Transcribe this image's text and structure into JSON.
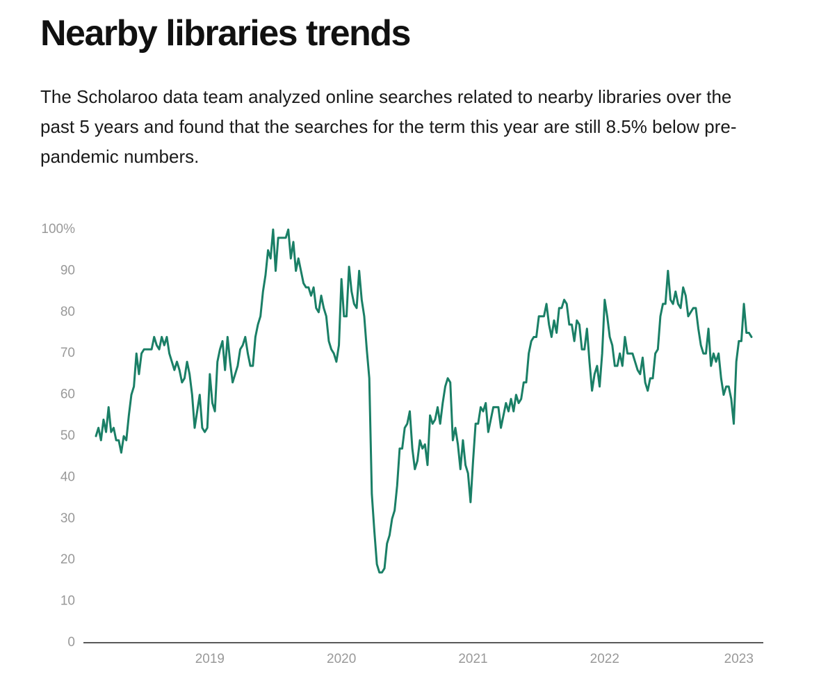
{
  "chart_data": {
    "type": "line",
    "title": "Nearby libraries trends",
    "subtitle": "The Scholaroo data team analyzed online searches related to nearby libraries over the past 5 years and found that the searches for the term this year are still 8.5% below pre-pandemic numbers.",
    "color": "#1a7f66",
    "ylim": [
      0,
      100
    ],
    "yticks": [
      0,
      10,
      20,
      30,
      40,
      50,
      60,
      70,
      80,
      90,
      {
        "value": 100,
        "label": "100%"
      }
    ],
    "grid": false,
    "categories": [
      null,
      null,
      null,
      null,
      null,
      null,
      null,
      null,
      null,
      null,
      null,
      null,
      null,
      null,
      null,
      null,
      null,
      null,
      null,
      null,
      null,
      null,
      null,
      null,
      null,
      null,
      null,
      null,
      null,
      null,
      null,
      null,
      null,
      null,
      null,
      null,
      null,
      null,
      null,
      null,
      null,
      null,
      null,
      null,
      null,
      "2019",
      null,
      null,
      null,
      null,
      null,
      null,
      null,
      null,
      null,
      null,
      null,
      null,
      null,
      null,
      null,
      null,
      null,
      null,
      null,
      null,
      null,
      null,
      null,
      null,
      null,
      null,
      null,
      null,
      null,
      null,
      null,
      null,
      null,
      null,
      null,
      null,
      null,
      null,
      null,
      null,
      null,
      null,
      null,
      null,
      null,
      null,
      null,
      null,
      null,
      null,
      null,
      "2020",
      null,
      null,
      null,
      null,
      null,
      null,
      null,
      null,
      null,
      null,
      null,
      null,
      null,
      null,
      null,
      null,
      null,
      null,
      null,
      null,
      null,
      null,
      null,
      null,
      null,
      null,
      null,
      null,
      null,
      null,
      null,
      null,
      null,
      null,
      null,
      null,
      null,
      null,
      null,
      null,
      null,
      null,
      null,
      null,
      null,
      null,
      null,
      null,
      null,
      null,
      null,
      "2021",
      null,
      null,
      null,
      null,
      null,
      null,
      null,
      null,
      null,
      null,
      null,
      null,
      null,
      null,
      null,
      null,
      null,
      null,
      null,
      null,
      null,
      null,
      null,
      null,
      null,
      null,
      null,
      null,
      null,
      null,
      null,
      null,
      null,
      null,
      null,
      null,
      null,
      null,
      null,
      null,
      null,
      null,
      null,
      null,
      null,
      null,
      null,
      null,
      null,
      null,
      null,
      "2022",
      null,
      null,
      null,
      null,
      null,
      null,
      null,
      null,
      null,
      null,
      null,
      null,
      null,
      null,
      null,
      null,
      null,
      null,
      null,
      null,
      null,
      null,
      null,
      null,
      null,
      null,
      null,
      null,
      null,
      null,
      null,
      null,
      null,
      null,
      null,
      null,
      null,
      null,
      null,
      null,
      null,
      null,
      null,
      null,
      null,
      null,
      null,
      null,
      null,
      null,
      null,
      null,
      "2023",
      null,
      null,
      null,
      null,
      null
    ],
    "values": [
      50,
      52,
      49,
      54,
      51,
      57,
      51,
      52,
      49,
      49,
      46,
      50,
      49,
      55,
      60,
      62,
      70,
      65,
      70,
      71,
      71,
      71,
      71,
      74,
      72,
      71,
      74,
      72,
      74,
      70,
      68,
      66,
      68,
      66,
      63,
      64,
      68,
      65,
      60,
      52,
      56,
      60,
      52,
      51,
      52,
      65,
      58,
      56,
      68,
      71,
      73,
      66,
      74,
      68,
      63,
      65,
      67,
      71,
      72,
      74,
      70,
      67,
      67,
      74,
      77,
      79,
      85,
      89,
      95,
      93,
      100,
      90,
      98,
      98,
      98,
      98,
      100,
      93,
      97,
      90,
      93,
      90,
      87,
      86,
      86,
      84,
      86,
      81,
      80,
      84,
      81,
      79,
      73,
      71,
      70,
      68,
      72,
      88,
      79,
      79,
      91,
      85,
      82,
      81,
      90,
      83,
      79,
      71,
      64,
      36,
      27,
      19,
      17,
      17,
      18,
      24,
      26,
      30,
      32,
      38,
      47,
      47,
      52,
      53,
      56,
      47,
      42,
      44,
      49,
      47,
      48,
      43,
      55,
      53,
      54,
      57,
      53,
      58,
      62,
      64,
      63,
      49,
      52,
      48,
      42,
      49,
      43,
      41,
      34,
      44,
      53,
      53,
      57,
      56,
      58,
      51,
      54,
      57,
      57,
      57,
      52,
      55,
      58,
      56,
      59,
      56,
      60,
      58,
      59,
      63,
      63,
      70,
      73,
      74,
      74,
      79,
      79,
      79,
      82,
      77,
      74,
      78,
      75,
      81,
      81,
      83,
      82,
      77,
      77,
      73,
      78,
      77,
      71,
      71,
      76,
      68,
      61,
      65,
      67,
      62,
      70,
      83,
      79,
      74,
      72,
      67,
      67,
      70,
      67,
      74,
      70,
      70,
      70,
      68,
      66,
      65,
      69,
      63,
      61,
      64,
      64,
      70,
      71,
      79,
      82,
      82,
      90,
      83,
      82,
      85,
      82,
      81,
      86,
      84,
      79,
      80,
      81,
      81,
      76,
      72,
      70,
      70,
      76,
      67,
      70,
      68,
      70,
      64,
      60,
      62,
      62,
      59,
      53,
      68,
      73,
      73,
      82,
      75,
      75,
      74
    ]
  }
}
